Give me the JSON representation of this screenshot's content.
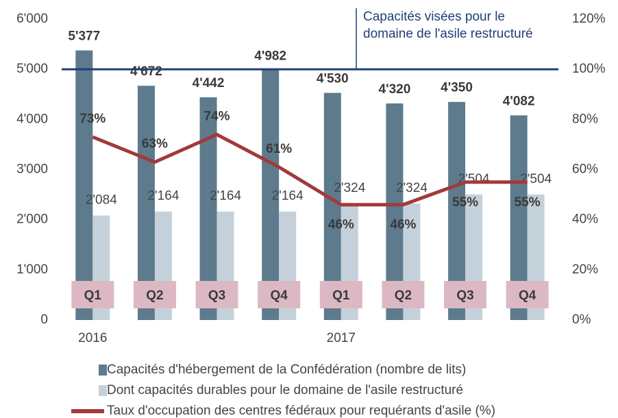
{
  "chart_data": {
    "type": "bar-line",
    "categories": [
      "Q1",
      "Q2",
      "Q3",
      "Q4",
      "Q1",
      "Q2",
      "Q3",
      "Q4"
    ],
    "years": [
      "2016",
      "2017"
    ],
    "series": [
      {
        "name": "Capacités d'hébergement de la Confédération (nombre de lits)",
        "color": "#5d7b8d",
        "type": "bar",
        "values": [
          5377,
          4672,
          4442,
          4982,
          4530,
          4320,
          4350,
          4082
        ],
        "value_labels": [
          "5'377",
          "4'672",
          "4'442",
          "4'982",
          "4'530",
          "4'320",
          "4'350",
          "4'082"
        ]
      },
      {
        "name": "Dont capacités durables pour le domaine de l'asile restructuré",
        "color": "#c5d1da",
        "type": "bar",
        "values": [
          2084,
          2164,
          2164,
          2164,
          2324,
          2324,
          2504,
          2504
        ],
        "value_labels": [
          "2'084",
          "2'164",
          "2'164",
          "2'164",
          "2'324",
          "2'324",
          "2'504",
          "2'504"
        ]
      },
      {
        "name": "Taux d'occupation des centres fédéraux pour requérants d'asile (%)",
        "color": "#a3393a",
        "type": "line",
        "axis": "y2",
        "values": [
          73,
          63,
          74,
          61,
          46,
          46,
          55,
          55
        ],
        "value_labels": [
          "73%",
          "63%",
          "74%",
          "61%",
          "46%",
          "46%",
          "55%",
          "55%"
        ]
      }
    ],
    "reference": {
      "value": 5000,
      "color": "#1f3f77",
      "lines": [
        "Capacités visées pour le",
        "domaine de l'asile restructuré"
      ]
    },
    "ylim": [
      0,
      6000
    ],
    "yticks": [
      0,
      {
        "value": 1000,
        "label": "1'000"
      },
      {
        "value": 2000,
        "label": "2'000"
      },
      {
        "value": 3000,
        "label": "3'000"
      },
      {
        "value": 4000,
        "label": "4'000"
      },
      {
        "value": 5000,
        "label": "5'000"
      },
      {
        "value": 6000,
        "label": "6'000"
      }
    ],
    "y2lim": [
      0,
      120
    ],
    "y2ticks": [
      {
        "value": 0,
        "label": "0%"
      },
      {
        "value": 20,
        "label": "20%"
      },
      {
        "value": 40,
        "label": "40%"
      },
      {
        "value": 60,
        "label": "60%"
      },
      {
        "value": 80,
        "label": "80%"
      },
      {
        "value": 100,
        "label": "100%"
      },
      {
        "value": 120,
        "label": "120%"
      }
    ]
  }
}
